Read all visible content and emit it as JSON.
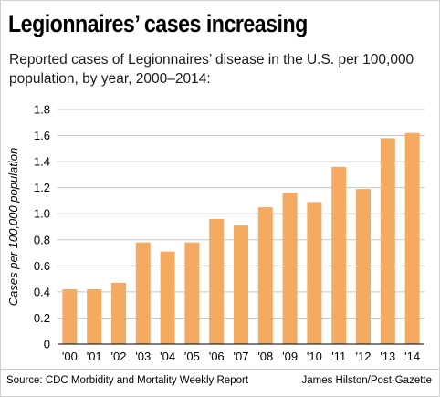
{
  "header": {
    "title": "Legionnaires’ cases increasing",
    "subtitle": "Reported cases of Legionnaires’ disease in the U.S. per 100,000 population, by year, 2000–2014:"
  },
  "footer": {
    "source": "Source: CDC Morbidity and Mortality Weekly Report",
    "credit": "James Hilston/Post-Gazette"
  },
  "chart_data": {
    "type": "bar",
    "categories": [
      "'00",
      "'01",
      "'02",
      "'03",
      "'04",
      "'05",
      "'06",
      "'07",
      "'08",
      "'09",
      "'10",
      "'11",
      "'12",
      "'13",
      "'14"
    ],
    "values": [
      0.42,
      0.42,
      0.47,
      0.78,
      0.71,
      0.78,
      0.96,
      0.91,
      1.05,
      1.16,
      1.09,
      1.36,
      1.19,
      1.58,
      1.62
    ],
    "ylabel": "Cases per 100,000 population",
    "xlabel": "",
    "ylim": [
      0,
      1.8
    ],
    "yticks": [
      0,
      0.2,
      0.4,
      0.6,
      0.8,
      1.0,
      1.2,
      1.4,
      1.6,
      1.8
    ],
    "ytick_labels": [
      "0",
      "0.2",
      "0.4",
      "0.6",
      "0.8",
      "1.0",
      "1.2",
      "1.4",
      "1.6",
      "1.8"
    ],
    "grid": true,
    "bar_color": "#f4aa60",
    "grid_color": "#c8c8c8"
  }
}
